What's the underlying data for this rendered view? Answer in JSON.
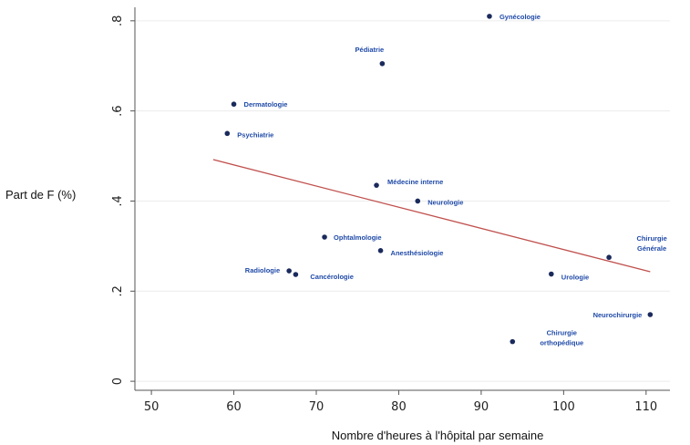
{
  "chart_data": {
    "type": "scatter",
    "title": "",
    "xlabel": "Nombre d'heures à l'hôpital par semaine",
    "ylabel": "Part de F (%)",
    "xlim": [
      48,
      114
    ],
    "ylim": [
      -0.02,
      0.83
    ],
    "xticks": [
      "50",
      "60",
      "70",
      "80",
      "90",
      "100",
      "110"
    ],
    "yticks": [
      "0",
      ".2",
      ".4",
      ".6",
      ".8"
    ],
    "grid": "horizontal",
    "colors": {
      "point": "#1a2a5c",
      "label": "#1f4aa8",
      "fit": "#c0504d",
      "grid": "#ececec",
      "axis": "#555555"
    },
    "points": [
      {
        "x": 91.0,
        "y": 0.81,
        "label": [
          "Gynécologie"
        ]
      },
      {
        "x": 78.0,
        "y": 0.705,
        "label": [
          "Pédiatrie"
        ]
      },
      {
        "x": 60.0,
        "y": 0.615,
        "label": [
          "Dermatologie"
        ]
      },
      {
        "x": 59.2,
        "y": 0.55,
        "label": [
          "Psychiatrie"
        ]
      },
      {
        "x": 77.3,
        "y": 0.435,
        "label": [
          "Médecine interne"
        ]
      },
      {
        "x": 82.3,
        "y": 0.4,
        "label": [
          "Neurologie"
        ]
      },
      {
        "x": 71.0,
        "y": 0.32,
        "label": [
          "Ophtalmologie"
        ]
      },
      {
        "x": 77.8,
        "y": 0.29,
        "label": [
          "Anesthésiologie"
        ]
      },
      {
        "x": 105.5,
        "y": 0.275,
        "label": [
          "Chirurgie",
          "Générale"
        ]
      },
      {
        "x": 66.7,
        "y": 0.245,
        "label": [
          "Radiologie"
        ]
      },
      {
        "x": 67.5,
        "y": 0.237,
        "label": [
          "Cancérologie"
        ]
      },
      {
        "x": 98.5,
        "y": 0.238,
        "label": [
          "Urologie"
        ]
      },
      {
        "x": 110.5,
        "y": 0.148,
        "label": [
          "Neurochirurgie"
        ]
      },
      {
        "x": 93.8,
        "y": 0.088,
        "label": [
          "Chirurgie",
          "orthopédique"
        ]
      }
    ],
    "fit_line": {
      "x": [
        57.5,
        110.5
      ],
      "y": [
        0.492,
        0.243
      ]
    }
  }
}
